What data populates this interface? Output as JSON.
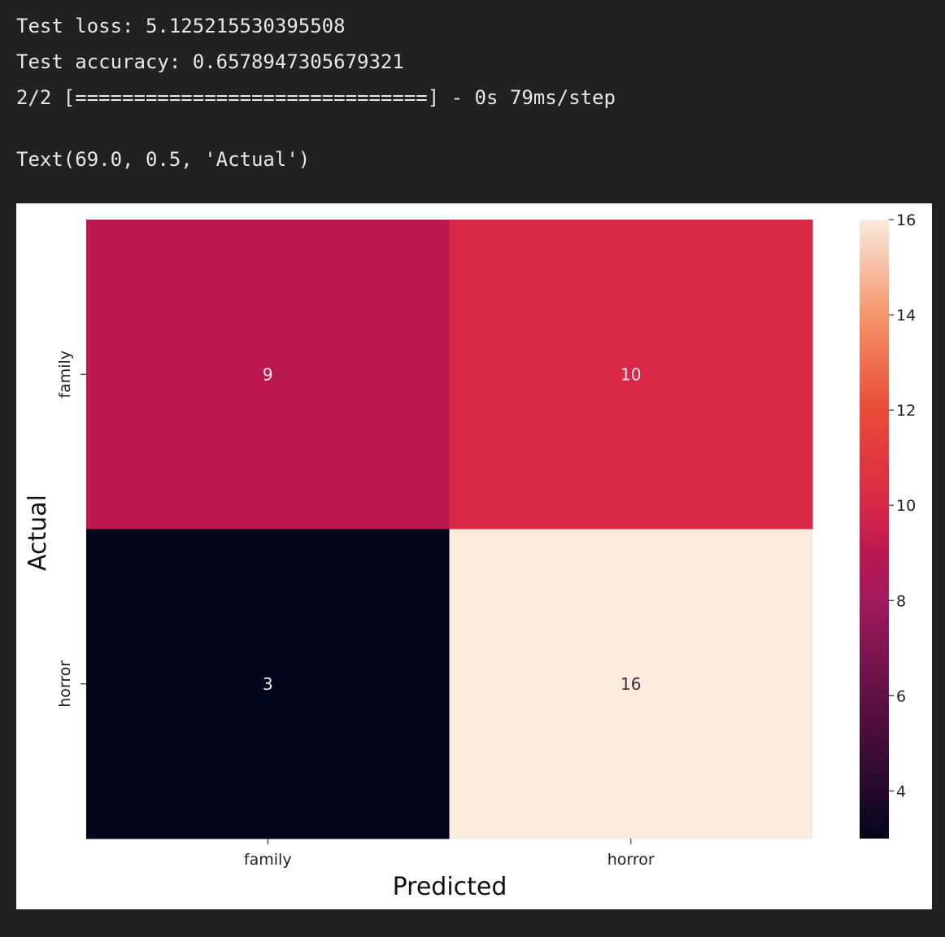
{
  "console": {
    "test_loss": "Test loss: 5.125215530395508",
    "test_accuracy": "Test accuracy: 0.6578947305679321",
    "progress": "2/2 [==============================] - 0s 79ms/step",
    "text_repr": "Text(69.0, 0.5, 'Actual')"
  },
  "chart_data": {
    "type": "heatmap",
    "title": "",
    "xlabel": "Predicted",
    "ylabel": "Actual",
    "x_categories": [
      "family",
      "horror"
    ],
    "y_categories": [
      "family",
      "horror"
    ],
    "values": [
      [
        9,
        10
      ],
      [
        3,
        16
      ]
    ],
    "annotations": [
      "9",
      "10",
      "3",
      "16"
    ],
    "colorbar": {
      "vmin": 3,
      "vmax": 16,
      "ticks": [
        4,
        6,
        8,
        10,
        12,
        14,
        16
      ],
      "colormap": "rocket",
      "colors": {
        "min": "#03051a",
        "c8": "#a11a5b",
        "c9": "#bb1850",
        "c10": "#d92847",
        "c12": "#e94b37",
        "c14": "#f5956a",
        "max": "#faebdd"
      }
    },
    "grid": false
  }
}
